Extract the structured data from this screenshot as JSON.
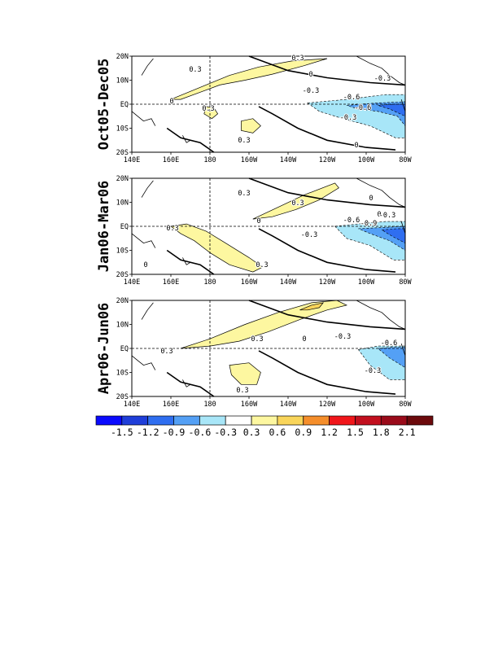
{
  "chart_data": {
    "type": "heatmap",
    "map": {
      "x_ticks": [
        "140E",
        "160E",
        "180",
        "160W",
        "140W",
        "120W",
        "100W",
        "80W"
      ],
      "y_ticks": [
        "20N",
        "10N",
        "EQ",
        "10S",
        "20S"
      ],
      "lon_range": [
        140,
        280
      ],
      "lat_range": [
        -20,
        20
      ]
    },
    "panels": [
      {
        "title": "Oct05-Dec05",
        "contour_labels": [
          "0.3",
          "0.3",
          "0.3",
          "0.3",
          "0",
          "0",
          "0",
          "-0.3",
          "-0.3",
          "-0.6",
          "-0.6",
          "-0.3"
        ],
        "positive_regions": [
          {
            "level": 0.3,
            "polygon": [
              [
                160,
                2
              ],
              [
                175,
                7
              ],
              [
                190,
                12
              ],
              [
                205,
                15.5
              ],
              [
                222,
                18
              ],
              [
                240,
                19
              ],
              [
                228,
                16
              ],
              [
                212,
                12.5
              ],
              [
                198,
                10
              ],
              [
                185,
                8
              ],
              [
                175,
                5
              ],
              [
                165,
                2
              ],
              [
                160,
                2
              ]
            ]
          },
          {
            "level": 0.3,
            "polygon": [
              [
                178,
                -1
              ],
              [
                182,
                -1.5
              ],
              [
                184,
                -4
              ],
              [
                181,
                -6
              ],
              [
                177,
                -4
              ]
            ]
          },
          {
            "level": 0.3,
            "polygon": [
              [
                196,
                -7
              ],
              [
                202,
                -6
              ],
              [
                206,
                -9
              ],
              [
                202,
                -12
              ],
              [
                196,
                -11
              ]
            ]
          }
        ],
        "negative_regions": [
          {
            "level": -0.3,
            "polygon": [
              [
                230,
                0.5
              ],
              [
                250,
                2
              ],
              [
                270,
                4
              ],
              [
                280,
                4
              ],
              [
                280,
                -14
              ],
              [
                275,
                -14
              ],
              [
                262,
                -9
              ],
              [
                248,
                -6
              ],
              [
                236,
                -3
              ]
            ]
          },
          {
            "level": -0.6,
            "polygon": [
              [
                250,
                -0.5
              ],
              [
                265,
                0.5
              ],
              [
                280,
                1
              ],
              [
                280,
                -9
              ],
              [
                276,
                -5
              ],
              [
                266,
                -3
              ],
              [
                256,
                -2
              ]
            ]
          },
          {
            "level": -0.9,
            "polygon": [
              [
                266,
                -0.5
              ],
              [
                274,
                0
              ],
              [
                280,
                0
              ],
              [
                280,
                -5
              ],
              [
                272,
                -2
              ]
            ]
          }
        ]
      },
      {
        "title": "Jan06-Mar06",
        "contour_labels": [
          "0.3",
          "0.3",
          "0.3",
          "0.3",
          "0",
          "0",
          "0",
          "0",
          "-0.3",
          "-0.6",
          "-0.9",
          "-0.3"
        ],
        "positive_regions": [
          {
            "level": 0.3,
            "polygon": [
              [
                160,
                0
              ],
              [
                168,
                1
              ],
              [
                178,
                -2
              ],
              [
                188,
                -7
              ],
              [
                200,
                -13
              ],
              [
                207,
                -17
              ],
              [
                202,
                -19
              ],
              [
                190,
                -16
              ],
              [
                180,
                -11
              ],
              [
                172,
                -6
              ],
              [
                165,
                -3
              ]
            ]
          },
          {
            "level": 0.3,
            "polygon": [
              [
                202,
                3
              ],
              [
                215,
                8
              ],
              [
                228,
                13
              ],
              [
                244,
                18
              ],
              [
                246,
                16
              ],
              [
                236,
                11
              ],
              [
                224,
                7
              ],
              [
                212,
                4
              ]
            ]
          }
        ],
        "negative_regions": [
          {
            "level": -0.3,
            "polygon": [
              [
                244,
                0
              ],
              [
                256,
                1
              ],
              [
                270,
                2
              ],
              [
                280,
                2
              ],
              [
                280,
                -14
              ],
              [
                274,
                -14
              ],
              [
                262,
                -8
              ],
              [
                250,
                -5
              ]
            ]
          },
          {
            "level": -0.6,
            "polygon": [
              [
                256,
                -1
              ],
              [
                268,
                -0.5
              ],
              [
                280,
                0
              ],
              [
                280,
                -10
              ],
              [
                272,
                -6
              ],
              [
                262,
                -3
              ]
            ]
          },
          {
            "level": -0.9,
            "polygon": [
              [
                268,
                -1.5
              ],
              [
                276,
                -1
              ],
              [
                280,
                -1
              ],
              [
                280,
                -7
              ],
              [
                273,
                -4
              ]
            ]
          }
        ]
      },
      {
        "title": "Apr06-Jun06",
        "contour_labels": [
          "0.3",
          "0.3",
          "0.3",
          "0",
          "-0.3",
          "-0.6",
          "-0.3"
        ],
        "positive_regions": [
          {
            "level": 0.3,
            "polygon": [
              [
                165,
                0
              ],
              [
                180,
                4
              ],
              [
                198,
                10
              ],
              [
                215,
                15
              ],
              [
                232,
                19
              ],
              [
                245,
                20
              ],
              [
                250,
                18
              ],
              [
                240,
                16
              ],
              [
                226,
                12
              ],
              [
                210,
                7
              ],
              [
                195,
                3
              ],
              [
                180,
                1
              ]
            ]
          },
          {
            "level": 0.6,
            "polygon": [
              [
                226,
                16
              ],
              [
                232,
                18
              ],
              [
                238,
                19
              ],
              [
                236,
                17
              ],
              [
                230,
                16
              ]
            ]
          },
          {
            "level": 0.3,
            "polygon": [
              [
                190,
                -7
              ],
              [
                200,
                -6
              ],
              [
                206,
                -10
              ],
              [
                204,
                -15
              ],
              [
                196,
                -15
              ],
              [
                191,
                -11
              ]
            ]
          }
        ],
        "negative_regions": [
          {
            "level": -0.3,
            "polygon": [
              [
                256,
                -0.5
              ],
              [
                266,
                1
              ],
              [
                280,
                1
              ],
              [
                280,
                -13
              ],
              [
                272,
                -13
              ],
              [
                262,
                -7
              ]
            ]
          },
          {
            "level": -0.6,
            "polygon": [
              [
                266,
                0
              ],
              [
                274,
                0.5
              ],
              [
                280,
                0.5
              ],
              [
                280,
                -8
              ],
              [
                272,
                -4
              ]
            ]
          }
        ]
      }
    ],
    "colorbar": {
      "labels": [
        "-1.5",
        "-1.2",
        "-0.9",
        "-0.6",
        "-0.3",
        "0.3",
        "0.6",
        "0.9",
        "1.2",
        "1.5",
        "1.8",
        "2.1"
      ],
      "colors": [
        "#0a0aff",
        "#1f3ed9",
        "#2f6ef0",
        "#54a0f5",
        "#a8e6f8",
        "#ffffff",
        "#fdf7a0",
        "#f9d55a",
        "#f58e2b",
        "#f0161a",
        "#c20f1e",
        "#9a0b1a",
        "#6c0a0c"
      ]
    }
  }
}
